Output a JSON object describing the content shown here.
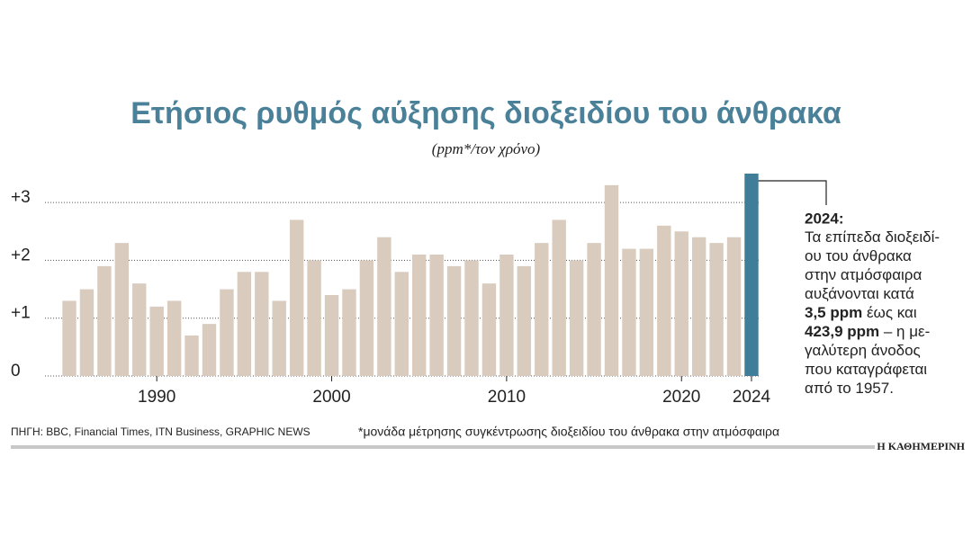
{
  "chart_data": {
    "type": "bar",
    "title": "Ετήσιος ρυθμός αύξησης διοξειδίου του άνθρακα",
    "subtitle": "(ppm*/τον χρόνο)",
    "categories": [
      null,
      null,
      null,
      null,
      null,
      "1990",
      null,
      null,
      null,
      null,
      null,
      null,
      null,
      null,
      null,
      "2000",
      null,
      null,
      null,
      null,
      null,
      null,
      null,
      null,
      null,
      "2010",
      null,
      null,
      null,
      null,
      null,
      null,
      null,
      null,
      null,
      "2020",
      null,
      null,
      null,
      "2024"
    ],
    "values": [
      1.3,
      1.5,
      1.9,
      2.3,
      1.6,
      1.2,
      1.3,
      0.7,
      0.9,
      1.5,
      1.8,
      1.8,
      1.3,
      2.7,
      2.0,
      1.4,
      1.5,
      2.0,
      2.4,
      1.8,
      2.1,
      2.1,
      1.9,
      2.0,
      1.6,
      2.1,
      1.9,
      2.3,
      2.7,
      2.0,
      2.3,
      3.3,
      2.2,
      2.2,
      2.6,
      2.5,
      2.4,
      2.3,
      2.4,
      3.5
    ],
    "colors": [
      "#d9ccbf",
      "#d9ccbf",
      "#d9ccbf",
      "#d9ccbf",
      "#d9ccbf",
      "#d9ccbf",
      "#d9ccbf",
      "#d9ccbf",
      "#d9ccbf",
      "#d9ccbf",
      "#d9ccbf",
      "#d9ccbf",
      "#d9ccbf",
      "#d9ccbf",
      "#d9ccbf",
      "#d9ccbf",
      "#d9ccbf",
      "#d9ccbf",
      "#d9ccbf",
      "#d9ccbf",
      "#d9ccbf",
      "#d9ccbf",
      "#d9ccbf",
      "#d9ccbf",
      "#d9ccbf",
      "#d9ccbf",
      "#d9ccbf",
      "#d9ccbf",
      "#d9ccbf",
      "#d9ccbf",
      "#d9ccbf",
      "#d9ccbf",
      "#d9ccbf",
      "#d9ccbf",
      "#d9ccbf",
      "#d9ccbf",
      "#d9ccbf",
      "#d9ccbf",
      "#d9ccbf",
      "#3f7d98"
    ],
    "ylim": [
      0,
      3.5
    ],
    "yticks": [
      0,
      {
        "value": 1,
        "label": "+1"
      },
      {
        "value": 2,
        "label": "+2"
      },
      {
        "value": 3,
        "label": "+3"
      }
    ],
    "grid": true,
    "annotation": {
      "title": "2024:",
      "lines": [
        [
          {
            "text": "Τα επίπεδα διοξειδί-",
            "bold": false
          }
        ],
        [
          {
            "text": "ου του άνθρακα",
            "bold": false
          }
        ],
        [
          {
            "text": "στην ατμόσφαιρα",
            "bold": false
          }
        ],
        [
          {
            "text": "αυξάνονται κατά",
            "bold": false
          }
        ],
        [
          {
            "text": "3,5 ppm",
            "bold": true
          },
          {
            "text": " έως και",
            "bold": false
          }
        ],
        [
          {
            "text": "423,9 ppm",
            "bold": true
          },
          {
            "text": " – η με-",
            "bold": false
          }
        ],
        [
          {
            "text": "γαλύτερη άνοδος",
            "bold": false
          }
        ],
        [
          {
            "text": "που καταγράφεται",
            "bold": false
          }
        ],
        [
          {
            "text": "από το 1957.",
            "bold": false
          }
        ]
      ]
    },
    "source": "ΠΗΓΗ: BBC, Financial Times, ITN Business, GRAPHIC NEWS",
    "footnote": "*μονάδα μέτρησης συγκέντρωσης διοξειδίου του άνθρακα στην ατμόσφαιρα",
    "brand": "Η ΚΑΘΗΜΕΡΙΝΗ"
  }
}
